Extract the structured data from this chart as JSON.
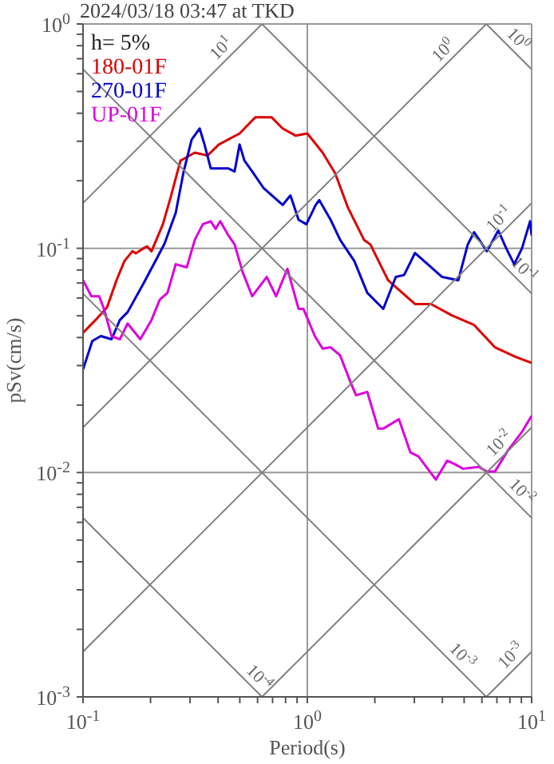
{
  "chart_data": {
    "type": "line",
    "title": "2024/03/18 03:47 at TKD",
    "xlabel": "Period(s)",
    "ylabel": "pSv(cm/s)",
    "log": "xy",
    "grid": true,
    "legend": "top left",
    "marker": "none",
    "line_style": "solid",
    "xlim": [
      0.1,
      10
    ],
    "ylim": [
      0.001,
      1
    ],
    "xticks": [
      {
        "value": 0.1,
        "label": "10$^{-1}$"
      },
      {
        "value": 0.2,
        "label": null
      },
      {
        "value": 0.3,
        "label": null
      },
      {
        "value": 0.4,
        "label": null
      },
      {
        "value": 0.5,
        "label": null
      },
      {
        "value": 0.6,
        "label": null
      },
      {
        "value": 0.7,
        "label": null
      },
      {
        "value": 0.8,
        "label": null
      },
      {
        "value": 0.9,
        "label": null
      },
      {
        "value": 1,
        "label": "10$^{0}$"
      },
      {
        "value": 2,
        "label": null
      },
      {
        "value": 3,
        "label": null
      },
      {
        "value": 4,
        "label": null
      },
      {
        "value": 5,
        "label": null
      },
      {
        "value": 6,
        "label": null
      },
      {
        "value": 7,
        "label": null
      },
      {
        "value": 8,
        "label": null
      },
      {
        "value": 9,
        "label": null
      },
      {
        "value": 10,
        "label": "10$^{1}$"
      }
    ],
    "yticks": [
      {
        "value": 0.001,
        "label": "10$^{-3}$"
      },
      {
        "value": 0.002,
        "label": null
      },
      {
        "value": 0.003,
        "label": null
      },
      {
        "value": 0.004,
        "label": null
      },
      {
        "value": 0.005,
        "label": null
      },
      {
        "value": 0.006,
        "label": null
      },
      {
        "value": 0.007,
        "label": null
      },
      {
        "value": 0.008,
        "label": null
      },
      {
        "value": 0.009,
        "label": null
      },
      {
        "value": 0.01,
        "label": "10$^{-2}$"
      },
      {
        "value": 0.02,
        "label": null
      },
      {
        "value": 0.03,
        "label": null
      },
      {
        "value": 0.04,
        "label": null
      },
      {
        "value": 0.05,
        "label": null
      },
      {
        "value": 0.06,
        "label": null
      },
      {
        "value": 0.07,
        "label": null
      },
      {
        "value": 0.08,
        "label": null
      },
      {
        "value": 0.09,
        "label": null
      },
      {
        "value": 0.1,
        "label": "10$^{-1}$"
      },
      {
        "value": 0.2,
        "label": null
      },
      {
        "value": 0.3,
        "label": null
      },
      {
        "value": 0.4,
        "label": null
      },
      {
        "value": 0.5,
        "label": null
      },
      {
        "value": 0.6,
        "label": null
      },
      {
        "value": 0.7,
        "label": null
      },
      {
        "value": 0.8,
        "label": null
      },
      {
        "value": 0.9,
        "label": null
      },
      {
        "value": 1,
        "label": "10$^{0}$"
      }
    ],
    "series": [
      {
        "name": "180-01F",
        "color": "#dd0000",
        "x": [
          0.1,
          0.114,
          0.128,
          0.141,
          0.153,
          0.166,
          0.172,
          0.186,
          0.193,
          0.202,
          0.227,
          0.246,
          0.272,
          0.315,
          0.359,
          0.403,
          0.499,
          0.587,
          0.692,
          0.776,
          0.885,
          1.0,
          1.17,
          1.33,
          1.52,
          1.79,
          1.91,
          2.29,
          3.02,
          3.56,
          4.41,
          5.54,
          6.86,
          8.49,
          10
        ],
        "values": [
          0.042,
          0.048,
          0.0546,
          0.072,
          0.0877,
          0.097,
          0.095,
          0.1,
          0.102,
          0.097,
          0.128,
          0.169,
          0.246,
          0.267,
          0.259,
          0.29,
          0.325,
          0.384,
          0.384,
          0.342,
          0.318,
          0.325,
          0.267,
          0.216,
          0.151,
          0.109,
          0.104,
          0.072,
          0.0564,
          0.0564,
          0.0502,
          0.0455,
          0.0362,
          0.0328,
          0.0308
        ]
      },
      {
        "name": "270-01F",
        "color": "#0000cc",
        "x": [
          0.1,
          0.11,
          0.12,
          0.134,
          0.146,
          0.158,
          0.186,
          0.212,
          0.231,
          0.259,
          0.281,
          0.305,
          0.331,
          0.348,
          0.371,
          0.445,
          0.474,
          0.499,
          0.524,
          0.568,
          0.637,
          0.776,
          0.841,
          0.914,
          0.99,
          1.09,
          1.13,
          1.27,
          1.4,
          1.62,
          1.85,
          2.18,
          2.48,
          2.7,
          3.02,
          3.44,
          3.99,
          4.71,
          5.19,
          5.54,
          6.32,
          7.1,
          7.7,
          8.36,
          9.06,
          9.84,
          10
        ],
        "values": [
          0.0288,
          0.0386,
          0.0406,
          0.0393,
          0.0479,
          0.0519,
          0.0697,
          0.0891,
          0.105,
          0.144,
          0.22,
          0.305,
          0.342,
          0.29,
          0.227,
          0.227,
          0.22,
          0.29,
          0.246,
          0.22,
          0.186,
          0.156,
          0.172,
          0.134,
          0.128,
          0.156,
          0.164,
          0.134,
          0.109,
          0.0877,
          0.0633,
          0.0537,
          0.0745,
          0.076,
          0.0953,
          0.0849,
          0.0745,
          0.072,
          0.104,
          0.118,
          0.097,
          0.12,
          0.1,
          0.0849,
          0.1,
          0.132,
          0.114
        ]
      },
      {
        "name": "UP-01F",
        "color": "#dd00dd",
        "x": [
          0.1,
          0.109,
          0.118,
          0.124,
          0.134,
          0.146,
          0.158,
          0.18,
          0.202,
          0.22,
          0.238,
          0.259,
          0.29,
          0.315,
          0.342,
          0.371,
          0.39,
          0.409,
          0.445,
          0.474,
          0.515,
          0.568,
          0.659,
          0.726,
          0.815,
          0.914,
          0.96,
          1.08,
          1.17,
          1.27,
          1.4,
          1.57,
          1.65,
          1.85,
          2.07,
          2.18,
          2.56,
          2.88,
          3.13,
          3.74,
          4.2,
          4.55,
          4.94,
          5.82,
          6.32,
          6.86,
          7.82,
          9.06,
          10
        ],
        "values": [
          0.072,
          0.0611,
          0.0611,
          0.0537,
          0.0406,
          0.0393,
          0.0462,
          0.0393,
          0.0479,
          0.0591,
          0.0633,
          0.0849,
          0.0822,
          0.109,
          0.128,
          0.132,
          0.122,
          0.132,
          0.114,
          0.104,
          0.0782,
          0.0611,
          0.0745,
          0.0611,
          0.081,
          0.0537,
          0.0537,
          0.0406,
          0.0357,
          0.0362,
          0.0333,
          0.0248,
          0.0221,
          0.0229,
          0.0157,
          0.0157,
          0.0173,
          0.0123,
          0.0118,
          0.0093,
          0.0113,
          0.0109,
          0.0104,
          0.0106,
          0.0101,
          0.0101,
          0.0125,
          0.0152,
          0.0179
        ]
      },
      {
        "color": "#808080",
        "x": [
          0.1,
          0.628
        ],
        "values": [
          0.159,
          1
        ]
      },
      {
        "color": "#808080",
        "x": [
          0.1,
          6.28
        ],
        "values": [
          0.0159,
          1
        ]
      },
      {
        "color": "#808080",
        "x": [
          0.1,
          10
        ],
        "values": [
          0.00159,
          0.159
        ]
      },
      {
        "color": "#808080",
        "x": [
          0.628,
          10
        ],
        "values": [
          0.001,
          0.0159
        ]
      },
      {
        "color": "#808080",
        "x": [
          6.28,
          10
        ],
        "values": [
          0.001,
          0.00159
        ]
      },
      {
        "color": "#808080",
        "x": [
          6.28,
          10
        ],
        "values": [
          1,
          0.628
        ]
      },
      {
        "color": "#808080",
        "x": [
          0.628,
          10
        ],
        "values": [
          1,
          0.0628
        ]
      },
      {
        "color": "#808080",
        "x": [
          0.1,
          10
        ],
        "values": [
          0.628,
          0.00628
        ]
      },
      {
        "color": "#808080",
        "x": [
          0.1,
          6.28
        ],
        "values": [
          0.0628,
          0.001
        ]
      },
      {
        "color": "#808080",
        "x": [
          0.1,
          0.628
        ],
        "values": [
          0.00628,
          0.001
        ]
      }
    ],
    "annotations": [
      "h= 5%",
      {
        "text": "10$^{1}$",
        "x": 0.45,
        "y": 0.716
      },
      {
        "text": "10$^{0}$",
        "x": 4.4,
        "y": 0.7
      },
      {
        "text": "10$^{0}$",
        "x": 8.0,
        "y": 0.785
      },
      {
        "text": "10$^{-1}$",
        "x": 7.8,
        "y": 0.124
      },
      {
        "text": "10$^{-1}$",
        "x": 8.5,
        "y": 0.0739
      },
      {
        "text": "10$^{-2}$",
        "x": 7.8,
        "y": 0.0124
      },
      {
        "text": "10$^{-2}$",
        "x": 8.3,
        "y": 0.00757
      },
      {
        "text": "10$^{-4}$",
        "x": 0.56,
        "y": 0.00112
      },
      {
        "text": "10$^{-3}$",
        "x": 4.5,
        "y": 0.0014
      },
      {
        "text": "10$^{-3}$",
        "x": 8.8,
        "y": 0.0014
      }
    ]
  }
}
